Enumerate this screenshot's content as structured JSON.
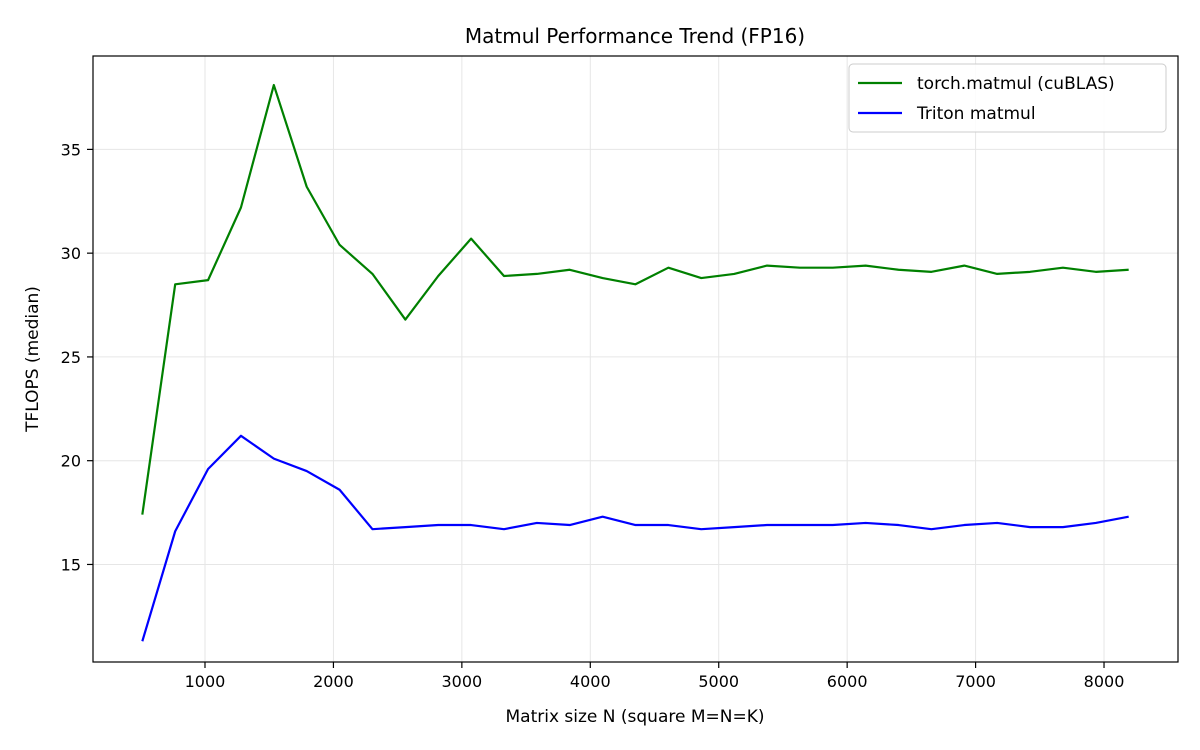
{
  "chart_data": {
    "type": "line",
    "title": "Matmul Performance Trend (FP16)",
    "xlabel": "Matrix size N (square M=N=K)",
    "ylabel": "TFLOPS (median)",
    "xlim": [
      128,
      8576
    ],
    "ylim": [
      10.3,
      39.5
    ],
    "xticks": [
      1000,
      2000,
      3000,
      4000,
      5000,
      6000,
      7000,
      8000
    ],
    "yticks": [
      15,
      20,
      25,
      30,
      35
    ],
    "grid": true,
    "legend_position": "top-right",
    "x": [
      512,
      768,
      1024,
      1280,
      1536,
      1792,
      2048,
      2304,
      2560,
      2816,
      3072,
      3328,
      3584,
      3840,
      4096,
      4352,
      4608,
      4864,
      5120,
      5376,
      5632,
      5888,
      6144,
      6400,
      6656,
      6912,
      7168,
      7424,
      7680,
      7936,
      8192
    ],
    "series": [
      {
        "name": "torch.matmul (cuBLAS)",
        "color": "#008000",
        "values": [
          17.4,
          28.5,
          28.7,
          32.2,
          38.1,
          33.2,
          30.4,
          29.0,
          26.8,
          28.9,
          30.7,
          28.9,
          29.0,
          29.2,
          28.8,
          28.5,
          29.3,
          28.8,
          29.0,
          29.4,
          29.3,
          29.3,
          29.4,
          29.2,
          29.1,
          29.4,
          29.0,
          29.1,
          29.3,
          29.1,
          29.2
        ]
      },
      {
        "name": "Triton matmul",
        "color": "#0000ff",
        "values": [
          11.3,
          16.6,
          19.6,
          21.2,
          20.1,
          19.5,
          18.6,
          16.7,
          16.8,
          16.9,
          16.9,
          16.7,
          17.0,
          16.9,
          17.3,
          16.9,
          16.9,
          16.7,
          16.8,
          16.9,
          16.9,
          16.9,
          17.0,
          16.9,
          16.7,
          16.9,
          17.0,
          16.8,
          16.8,
          17.0,
          17.3
        ]
      }
    ]
  }
}
